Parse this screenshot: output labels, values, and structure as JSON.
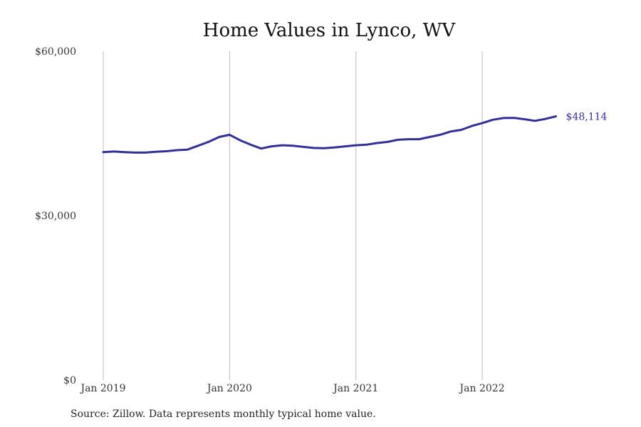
{
  "chart_data": {
    "type": "line",
    "title": "Home Values in Lynco, WV",
    "xlabel": "",
    "ylabel": "",
    "ylim": [
      0,
      60000
    ],
    "y_ticks": [
      {
        "value": 0,
        "label": "$0"
      },
      {
        "value": 30000,
        "label": "$30,000"
      },
      {
        "value": 60000,
        "label": "$60,000"
      }
    ],
    "x_ticks": [
      {
        "month_index": 0,
        "label": "Jan 2019"
      },
      {
        "month_index": 12,
        "label": "Jan 2020"
      },
      {
        "month_index": 24,
        "label": "Jan 2021"
      },
      {
        "month_index": 36,
        "label": "Jan 2022"
      }
    ],
    "grid": "vertical lines at x ticks",
    "color": "#33309a",
    "series": [
      {
        "x": [
          "2019-01",
          "2019-02",
          "2019-03",
          "2019-04",
          "2019-05",
          "2019-06",
          "2019-07",
          "2019-08",
          "2019-09",
          "2019-10",
          "2019-11",
          "2019-12",
          "2020-01",
          "2020-02",
          "2020-03",
          "2020-04",
          "2020-05",
          "2020-06",
          "2020-07",
          "2020-08",
          "2020-09",
          "2020-10",
          "2020-11",
          "2020-12",
          "2021-01",
          "2021-02",
          "2021-03",
          "2021-04",
          "2021-05",
          "2021-06",
          "2021-07",
          "2021-08",
          "2021-09",
          "2021-10",
          "2021-11",
          "2021-12",
          "2022-01",
          "2022-02",
          "2022-03",
          "2022-04",
          "2022-05",
          "2022-06",
          "2022-07",
          "2022-08"
        ],
        "values": [
          41600,
          41700,
          41600,
          41500,
          41500,
          41650,
          41750,
          41950,
          42050,
          42750,
          43450,
          44350,
          44750,
          43750,
          42950,
          42250,
          42650,
          42850,
          42750,
          42550,
          42350,
          42300,
          42450,
          42650,
          42850,
          42950,
          43250,
          43450,
          43850,
          43950,
          43950,
          44350,
          44750,
          45350,
          45650,
          46350,
          46900,
          47500,
          47800,
          47850,
          47600,
          47300,
          47650,
          48114
        ]
      }
    ],
    "end_label": "$48,114",
    "source": "Source: Zillow. Data represents monthly typical home value."
  }
}
